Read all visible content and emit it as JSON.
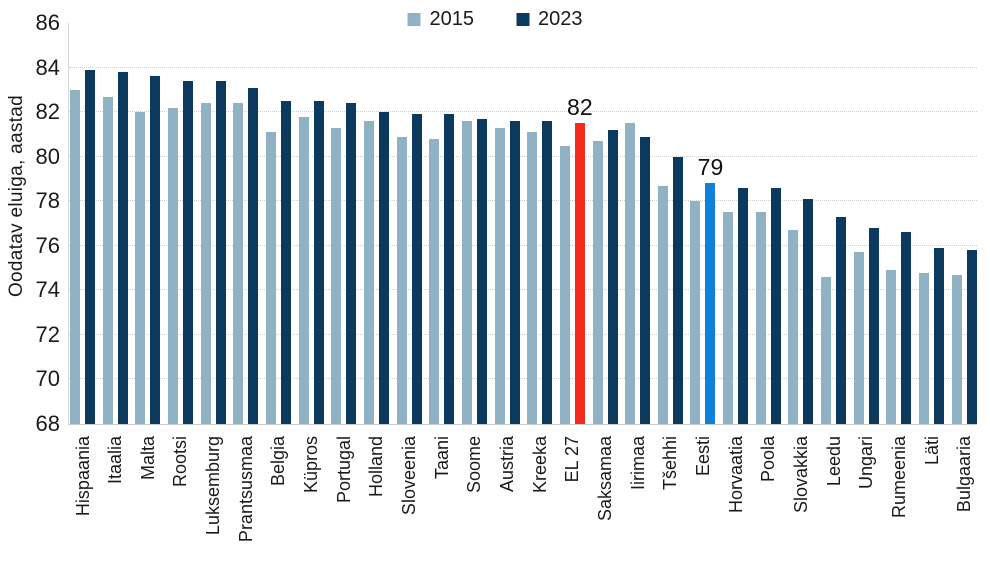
{
  "chart_data": {
    "type": "bar",
    "title": "",
    "ylabel": "Oodatav eluiga, aastad",
    "xlabel": "",
    "ylim": [
      68,
      86
    ],
    "yticks": [
      86,
      84,
      82,
      80,
      78,
      76,
      74,
      72,
      70,
      68
    ],
    "grid": "horizontal-dotted",
    "legend_position": "top-center",
    "categories": [
      "Hispaania",
      "Itaalia",
      "Malta",
      "Rootsi",
      "Luksemburg",
      "Prantsusmaa",
      "Belgia",
      "Küpros",
      "Portugal",
      "Holland",
      "Sloveenia",
      "Taani",
      "Soome",
      "Austria",
      "Kreeka",
      "EL 27",
      "Saksamaa",
      "Iirimaa",
      "Tšehhi",
      "Eesti",
      "Horvaatia",
      "Poola",
      "Slovakkia",
      "Leedu",
      "Ungari",
      "Rumeenia",
      "Läti",
      "Bulgaaria"
    ],
    "series": [
      {
        "name": "2015",
        "values": [
          83.0,
          82.7,
          82.0,
          82.2,
          82.4,
          82.4,
          81.1,
          81.8,
          81.3,
          81.6,
          80.9,
          80.8,
          81.6,
          81.3,
          81.1,
          80.5,
          80.7,
          81.5,
          78.7,
          78.0,
          77.5,
          77.5,
          76.7,
          74.6,
          75.7,
          74.9,
          74.8,
          74.7
        ]
      },
      {
        "name": "2023",
        "values": [
          83.9,
          83.8,
          83.6,
          83.4,
          83.4,
          83.1,
          82.5,
          82.5,
          82.4,
          82.0,
          81.9,
          81.9,
          81.7,
          81.6,
          81.6,
          81.5,
          81.2,
          80.9,
          80.0,
          78.8,
          78.6,
          78.6,
          78.1,
          77.3,
          76.8,
          76.6,
          75.9,
          75.8
        ]
      }
    ],
    "colors": {
      "series_2015": "#8fb3c5",
      "series_2023": "#0c3a5e",
      "el27_highlight": "#f42a1b",
      "eesti_highlight": "#1080dd",
      "grid": "#cfcfcf",
      "text": "#1a1a1a"
    },
    "highlights": [
      {
        "category": "EL 27",
        "series": "2023",
        "color_key": "el27_highlight",
        "label": "82"
      },
      {
        "category": "Eesti",
        "series": "2023",
        "color_key": "eesti_highlight",
        "label": "79"
      }
    ]
  }
}
